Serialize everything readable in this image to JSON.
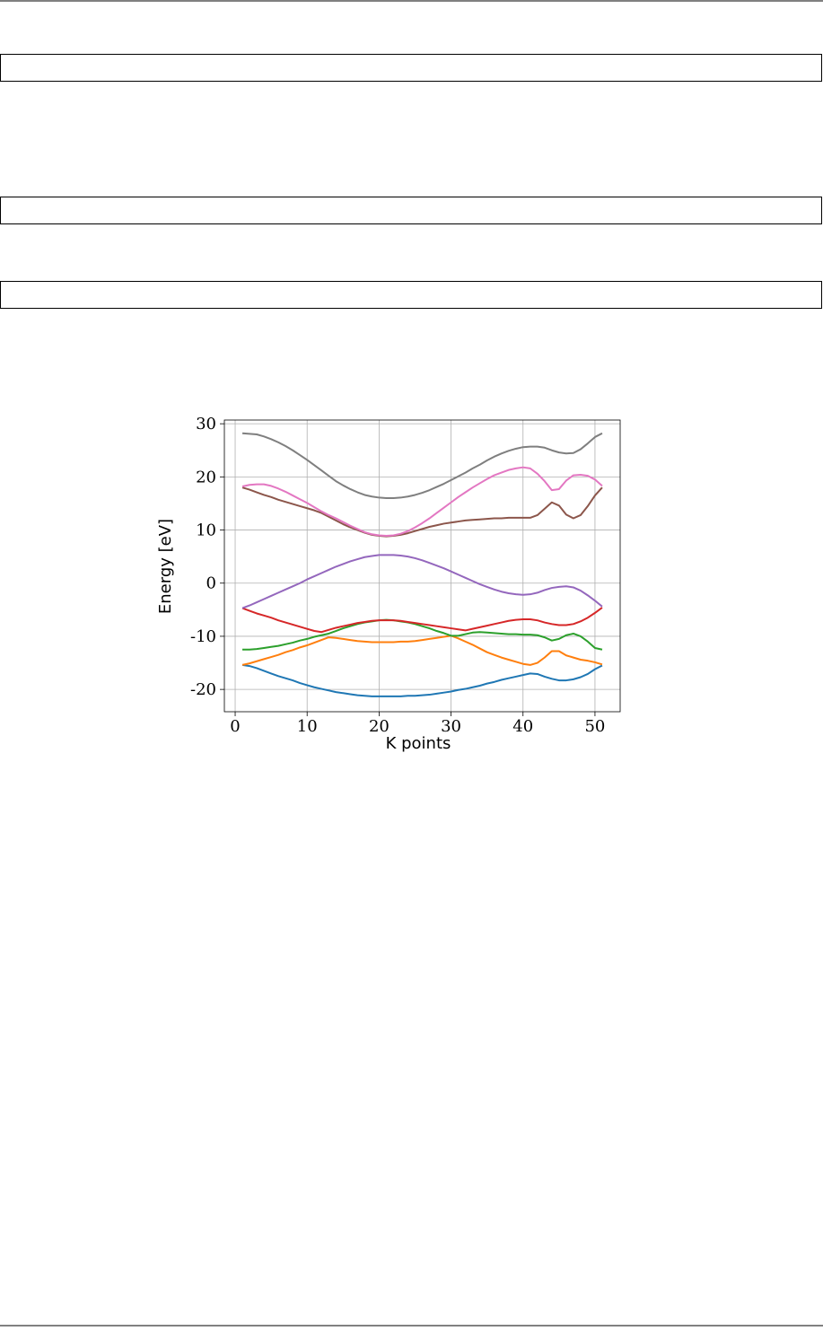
{
  "chart_data": {
    "type": "line",
    "xlabel": "K points",
    "ylabel": "Energy [eV]",
    "x": [
      1,
      2,
      3,
      4,
      5,
      6,
      7,
      8,
      9,
      10,
      11,
      12,
      13,
      14,
      15,
      16,
      17,
      18,
      19,
      20,
      21,
      22,
      23,
      24,
      25,
      26,
      27,
      28,
      29,
      30,
      31,
      32,
      33,
      34,
      35,
      36,
      37,
      38,
      39,
      40,
      41,
      42,
      43,
      44,
      45,
      46,
      47,
      48,
      49,
      50,
      51
    ],
    "xlim": [
      -1.5,
      53.5
    ],
    "xticks": [
      0,
      10,
      20,
      30,
      40,
      50
    ],
    "ylim": [
      -24.2,
      30.7
    ],
    "yticks": [
      -20,
      -10,
      0,
      10,
      20,
      30
    ],
    "grid": true,
    "series": [
      {
        "color": "#1f77b4",
        "values": [
          -15.4,
          -15.6,
          -16.0,
          -16.5,
          -17.0,
          -17.5,
          -17.9,
          -18.3,
          -18.8,
          -19.2,
          -19.6,
          -19.9,
          -20.2,
          -20.5,
          -20.7,
          -20.9,
          -21.1,
          -21.2,
          -21.3,
          -21.3,
          -21.3,
          -21.3,
          -21.3,
          -21.2,
          -21.2,
          -21.1,
          -21.0,
          -20.8,
          -20.6,
          -20.4,
          -20.1,
          -19.9,
          -19.6,
          -19.3,
          -18.9,
          -18.6,
          -18.2,
          -17.9,
          -17.6,
          -17.3,
          -17.0,
          -17.1,
          -17.6,
          -18.0,
          -18.3,
          -18.3,
          -18.1,
          -17.7,
          -17.1,
          -16.2,
          -15.5
        ]
      },
      {
        "color": "#ff7f0e",
        "values": [
          -15.4,
          -15.1,
          -14.7,
          -14.3,
          -13.9,
          -13.5,
          -13.0,
          -12.6,
          -12.1,
          -11.7,
          -11.2,
          -10.7,
          -10.2,
          -10.3,
          -10.5,
          -10.7,
          -10.9,
          -11.0,
          -11.1,
          -11.1,
          -11.1,
          -11.1,
          -11.0,
          -11.0,
          -10.9,
          -10.7,
          -10.5,
          -10.3,
          -10.1,
          -9.9,
          -10.4,
          -11.0,
          -11.6,
          -12.3,
          -13.0,
          -13.5,
          -14.0,
          -14.4,
          -14.8,
          -15.2,
          -15.4,
          -15.0,
          -14.0,
          -12.8,
          -12.8,
          -13.6,
          -14.0,
          -14.4,
          -14.6,
          -14.9,
          -15.3
        ]
      },
      {
        "color": "#2ca02c",
        "values": [
          -12.5,
          -12.5,
          -12.4,
          -12.2,
          -12.0,
          -11.8,
          -11.5,
          -11.2,
          -10.8,
          -10.5,
          -10.1,
          -9.8,
          -9.5,
          -9.0,
          -8.5,
          -8.1,
          -7.7,
          -7.4,
          -7.2,
          -7.0,
          -6.9,
          -7.0,
          -7.2,
          -7.4,
          -7.7,
          -8.1,
          -8.5,
          -9.0,
          -9.4,
          -9.9,
          -9.9,
          -9.6,
          -9.3,
          -9.2,
          -9.3,
          -9.4,
          -9.5,
          -9.6,
          -9.6,
          -9.7,
          -9.7,
          -9.8,
          -10.2,
          -10.8,
          -10.5,
          -9.8,
          -9.5,
          -10.0,
          -11.0,
          -12.2,
          -12.5
        ]
      },
      {
        "color": "#d62728",
        "values": [
          -4.7,
          -5.2,
          -5.7,
          -6.1,
          -6.5,
          -7.0,
          -7.4,
          -7.8,
          -8.2,
          -8.6,
          -9.0,
          -9.2,
          -8.8,
          -8.4,
          -8.1,
          -7.8,
          -7.5,
          -7.3,
          -7.1,
          -7.0,
          -7.0,
          -7.0,
          -7.1,
          -7.3,
          -7.5,
          -7.7,
          -7.9,
          -8.1,
          -8.3,
          -8.5,
          -8.7,
          -8.9,
          -8.6,
          -8.3,
          -8.0,
          -7.7,
          -7.4,
          -7.1,
          -6.9,
          -6.8,
          -6.8,
          -7.0,
          -7.4,
          -7.7,
          -7.9,
          -7.9,
          -7.7,
          -7.2,
          -6.5,
          -5.6,
          -4.6
        ]
      },
      {
        "color": "#9467bd",
        "values": [
          -4.7,
          -4.2,
          -3.6,
          -3.0,
          -2.4,
          -1.8,
          -1.2,
          -0.6,
          0.0,
          0.7,
          1.3,
          1.9,
          2.5,
          3.1,
          3.6,
          4.1,
          4.5,
          4.9,
          5.1,
          5.3,
          5.3,
          5.3,
          5.2,
          5.0,
          4.7,
          4.3,
          3.8,
          3.3,
          2.8,
          2.2,
          1.6,
          1.0,
          0.4,
          -0.2,
          -0.7,
          -1.2,
          -1.6,
          -1.9,
          -2.1,
          -2.2,
          -2.1,
          -1.8,
          -1.3,
          -0.9,
          -0.7,
          -0.6,
          -0.8,
          -1.4,
          -2.3,
          -3.3,
          -4.4
        ]
      },
      {
        "color": "#8c564b",
        "values": [
          18.0,
          17.6,
          17.1,
          16.6,
          16.2,
          15.7,
          15.3,
          14.9,
          14.5,
          14.1,
          13.7,
          13.2,
          12.5,
          11.8,
          11.1,
          10.5,
          10.0,
          9.5,
          9.1,
          8.9,
          8.8,
          8.9,
          9.1,
          9.4,
          9.8,
          10.2,
          10.6,
          10.9,
          11.2,
          11.4,
          11.6,
          11.8,
          11.9,
          12.0,
          12.1,
          12.2,
          12.2,
          12.3,
          12.3,
          12.3,
          12.3,
          12.8,
          14.0,
          15.2,
          14.6,
          12.9,
          12.2,
          12.8,
          14.5,
          16.5,
          18.0
        ]
      },
      {
        "color": "#e377c2",
        "values": [
          18.2,
          18.5,
          18.6,
          18.6,
          18.3,
          17.8,
          17.2,
          16.5,
          15.8,
          15.1,
          14.3,
          13.5,
          12.8,
          12.2,
          11.5,
          10.8,
          10.2,
          9.6,
          9.2,
          9.0,
          8.9,
          9.0,
          9.3,
          9.8,
          10.5,
          11.3,
          12.2,
          13.2,
          14.2,
          15.2,
          16.2,
          17.1,
          18.0,
          18.8,
          19.6,
          20.3,
          20.8,
          21.3,
          21.6,
          21.8,
          21.6,
          20.6,
          19.2,
          17.5,
          17.7,
          19.3,
          20.3,
          20.4,
          20.2,
          19.5,
          18.3
        ]
      },
      {
        "color": "#7f7f7f",
        "values": [
          28.2,
          28.1,
          28.0,
          27.6,
          27.1,
          26.5,
          25.8,
          25.0,
          24.1,
          23.2,
          22.2,
          21.2,
          20.2,
          19.2,
          18.4,
          17.7,
          17.1,
          16.6,
          16.3,
          16.1,
          16.0,
          16.0,
          16.1,
          16.3,
          16.6,
          17.0,
          17.5,
          18.1,
          18.7,
          19.4,
          20.1,
          20.8,
          21.6,
          22.3,
          23.1,
          23.8,
          24.4,
          24.9,
          25.3,
          25.6,
          25.7,
          25.7,
          25.5,
          25.0,
          24.6,
          24.4,
          24.5,
          25.2,
          26.3,
          27.5,
          28.2
        ]
      }
    ]
  }
}
